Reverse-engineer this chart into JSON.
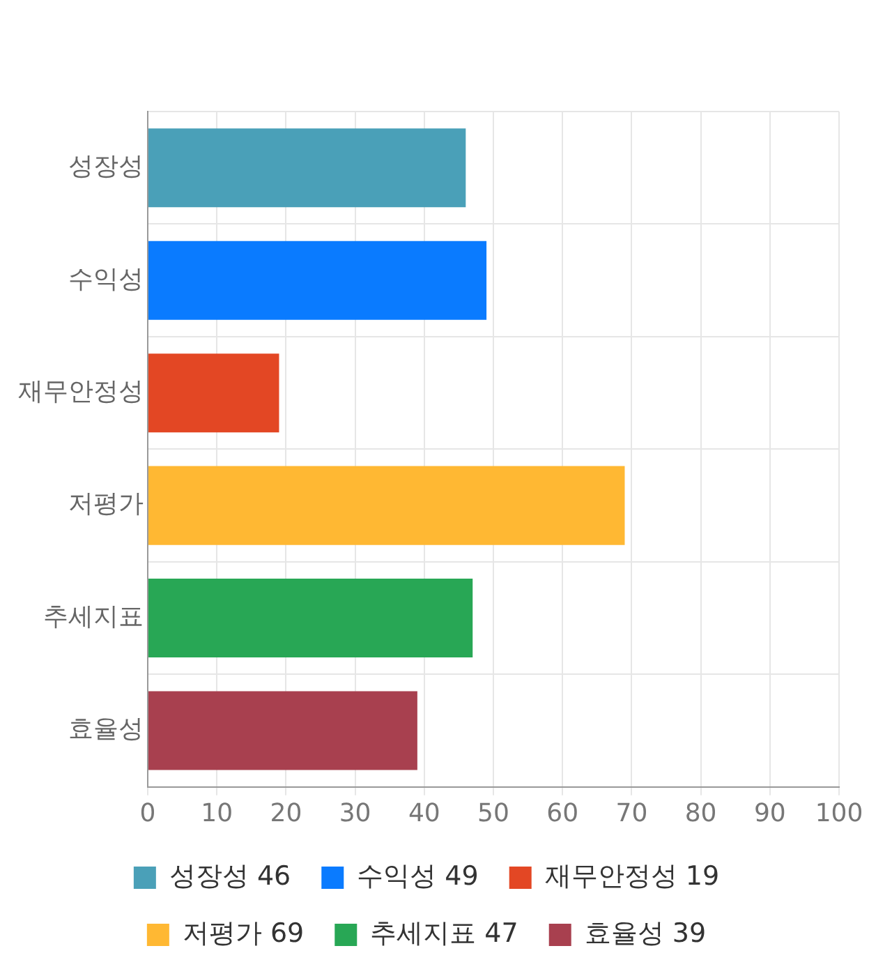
{
  "chart_data": {
    "type": "bar",
    "orientation": "horizontal",
    "categories": [
      "성장성",
      "수익성",
      "재무안정성",
      "저평가",
      "추세지표",
      "효율성"
    ],
    "series": [
      {
        "name": "성장성 46",
        "color": "#4aa0b8",
        "values": [
          46,
          null,
          null,
          null,
          null,
          null
        ]
      },
      {
        "name": "수익성 49",
        "color": "#0a7bff",
        "values": [
          null,
          49,
          null,
          null,
          null,
          null
        ]
      },
      {
        "name": "재무안정성 19",
        "color": "#e34724",
        "values": [
          null,
          null,
          19,
          null,
          null,
          null
        ]
      },
      {
        "name": "저평가 69",
        "color": "#ffb833",
        "values": [
          null,
          null,
          null,
          69,
          null,
          null
        ]
      },
      {
        "name": "추세지표 47",
        "color": "#28a755",
        "values": [
          null,
          null,
          null,
          null,
          47,
          null
        ]
      },
      {
        "name": "효율성 39",
        "color": "#a8404f",
        "values": [
          null,
          null,
          null,
          null,
          null,
          39
        ]
      }
    ],
    "xlim": [
      0,
      100
    ],
    "xticks": [
      0,
      10,
      20,
      30,
      40,
      50,
      60,
      70,
      80,
      90,
      100
    ],
    "grid": true,
    "legend": "bottom"
  }
}
